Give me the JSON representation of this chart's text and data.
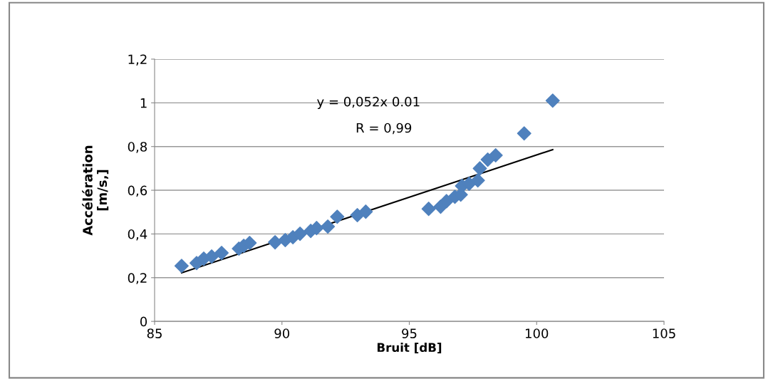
{
  "chart_data": {
    "type": "scatter",
    "xlabel": "Bruit [dB]",
    "ylabel": "Accélération\n[m/s‚]",
    "annotations": [
      "y = 0,052x 0.01",
      "R = 0,99"
    ],
    "series": [
      {
        "color": "#4f81bd",
        "marker": "diamond",
        "x": [
          86.06,
          86.65,
          86.93,
          87.24,
          87.63,
          88.31,
          88.5,
          88.73,
          89.73,
          90.13,
          90.43,
          90.71,
          91.13,
          91.36,
          91.8,
          92.17,
          92.96,
          93.29,
          95.76,
          96.23,
          96.46,
          96.79,
          97.02,
          97.07,
          97.35,
          97.69,
          97.77,
          98.08,
          98.39,
          99.51,
          100.63
        ],
        "values": [
          0.254,
          0.267,
          0.287,
          0.297,
          0.313,
          0.333,
          0.346,
          0.359,
          0.362,
          0.372,
          0.385,
          0.401,
          0.414,
          0.427,
          0.434,
          0.479,
          0.486,
          0.502,
          0.515,
          0.525,
          0.55,
          0.57,
          0.58,
          0.62,
          0.63,
          0.645,
          0.7,
          0.74,
          0.76,
          0.86,
          1.01
        ]
      },
      {
        "type": "line",
        "color": "#000000",
        "marker": "none",
        "x": [
          86.06,
          100.63
        ],
        "values": [
          0.222,
          0.786
        ]
      }
    ],
    "xlim": [
      85,
      105
    ],
    "xticks": [
      85,
      90,
      95,
      100,
      105
    ],
    "ylim": [
      0,
      1.2
    ],
    "yticks": [
      {
        "value": 0,
        "label": "0"
      },
      {
        "value": 0.2,
        "label": "0,2"
      },
      {
        "value": 0.4,
        "label": "0,4"
      },
      {
        "value": 0.6,
        "label": "0,6"
      },
      {
        "value": 0.8,
        "label": "0,8"
      },
      {
        "value": 1,
        "label": "1"
      },
      {
        "value": 1.2,
        "label": "1,2"
      }
    ],
    "grid": "y",
    "legend": false
  }
}
